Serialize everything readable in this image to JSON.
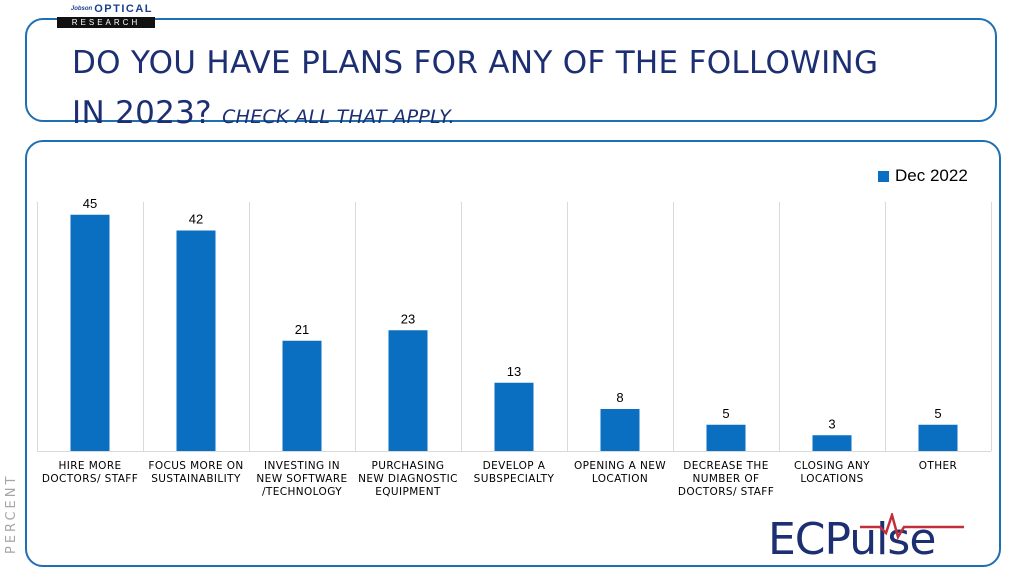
{
  "logo": {
    "brand_small": "Jobson",
    "brand": "OPTICAL",
    "bar": "RESEARCH"
  },
  "title": {
    "main_line1": "DO YOU HAVE PLANS FOR ANY OF THE FOLLOWING",
    "main_line2": "IN 2023?",
    "sub": "CHECK ALL THAT APPLY."
  },
  "footer_logo": {
    "text": "ECPulse"
  },
  "colors": {
    "bar": "#0a6ec1",
    "title": "#1d2f73",
    "border": "#1f6fb2",
    "pulse": "#c0303a"
  },
  "chart_data": {
    "type": "bar",
    "ylabel": "PERCENT",
    "ylim": [
      0,
      50
    ],
    "legend_position": "top-right",
    "grid": "vertical category separators",
    "categories": [
      [
        "HIRE MORE",
        "DOCTORS/ STAFF"
      ],
      [
        "FOCUS MORE ON",
        "SUSTAINABILITY"
      ],
      [
        "INVESTING IN",
        "NEW SOFTWARE",
        "/TECHNOLOGY"
      ],
      [
        "PURCHASING",
        "NEW DIAGNOSTIC",
        "EQUIPMENT"
      ],
      [
        "DEVELOP A",
        "SUBSPECIALTY"
      ],
      [
        "OPENING A NEW",
        "LOCATION"
      ],
      [
        "DECREASE THE",
        "NUMBER OF",
        "DOCTORS/ STAFF"
      ],
      [
        "CLOSING ANY",
        "LOCATIONS"
      ],
      [
        "OTHER"
      ]
    ],
    "series": [
      {
        "name": "Dec 2022",
        "values": [
          45,
          42,
          21,
          23,
          13,
          8,
          5,
          3,
          5
        ]
      }
    ]
  }
}
